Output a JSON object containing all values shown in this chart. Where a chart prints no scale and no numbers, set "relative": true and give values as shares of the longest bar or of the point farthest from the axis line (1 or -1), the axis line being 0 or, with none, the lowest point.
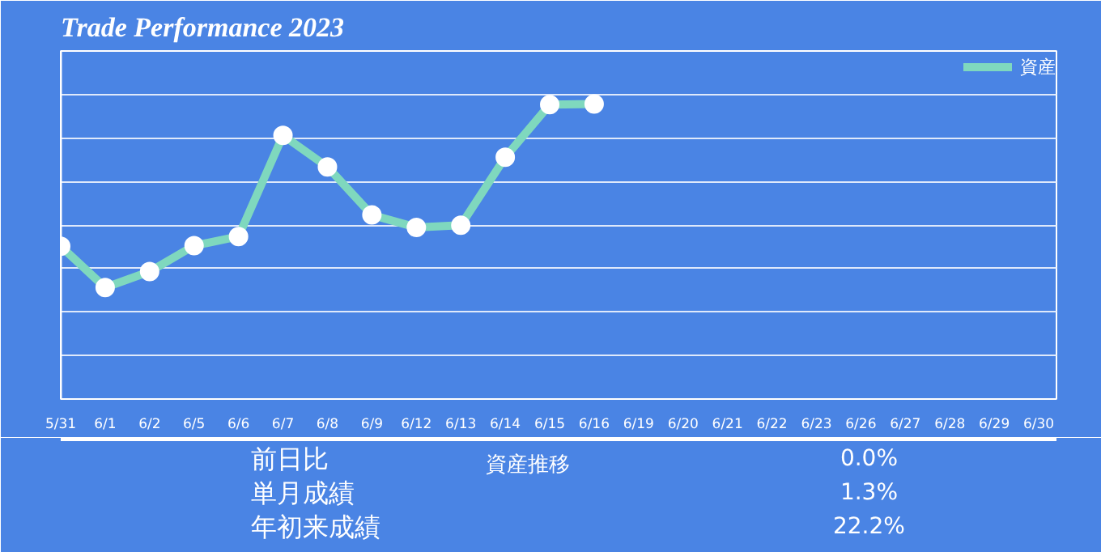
{
  "chart_data": {
    "type": "line",
    "title": "Trade Performance 2023",
    "relative": true,
    "categories": [
      "5/31",
      "6/1",
      "6/2",
      "6/5",
      "6/6",
      "6/7",
      "6/8",
      "6/9",
      "6/12",
      "6/13",
      "6/14",
      "6/15",
      "6/16",
      "6/19",
      "6/20",
      "6/21",
      "6/22",
      "6/23",
      "6/26",
      "6/27",
      "6/28",
      "6/29",
      "6/30"
    ],
    "series": [
      {
        "name": "資産",
        "color": "#7fd8be",
        "values": [
          0.518,
          0.378,
          0.432,
          0.52,
          0.551,
          0.894,
          0.787,
          0.624,
          0.582,
          0.589,
          0.82,
          0.998,
          1.0,
          null,
          null,
          null,
          null,
          null,
          null,
          null,
          null,
          null,
          null
        ]
      }
    ],
    "marker": "circle",
    "line_style": "solid",
    "grid": "y",
    "legend": "top right",
    "annotations": [
      "前日比",
      "0.0%",
      "単月成績",
      "1.3%",
      "年初来成績",
      "22.2%",
      "資産推移"
    ]
  }
}
